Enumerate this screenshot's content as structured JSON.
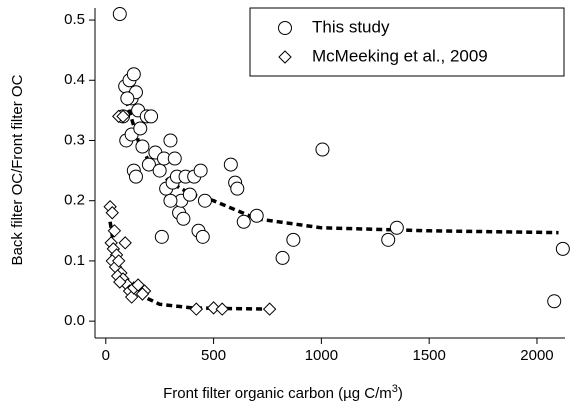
{
  "chart_data": {
    "type": "scatter",
    "x_label": "Front filter organic carbon (µg C/m",
    "x_label_sup": "3",
    "x_label_end": ")",
    "y_label": "Back filter OC/Front filter OC",
    "xlim": [
      -50,
      2130
    ],
    "ylim": [
      -0.028,
      0.52
    ],
    "xticks": [
      0,
      500,
      1000,
      1500,
      2000
    ],
    "yticks": [
      {
        "value": 0,
        "label": "0.0"
      },
      0.1,
      0.2,
      0.3,
      0.4,
      0.5
    ],
    "legend": "top-right",
    "series": [
      {
        "name": "This study",
        "marker": "circle",
        "color": "#000000",
        "x": [
          65,
          90,
          110,
          130,
          120,
          140,
          100,
          80,
          95,
          150,
          120,
          160,
          130,
          140,
          170,
          190,
          210,
          200,
          230,
          250,
          270,
          280,
          300,
          310,
          320,
          330,
          340,
          350,
          360,
          370,
          390,
          410,
          430,
          440,
          460,
          450,
          260,
          300,
          580,
          600,
          610,
          640,
          700,
          820,
          870,
          1005,
          1310,
          1350,
          2080,
          2120
        ],
        "values": [
          0.51,
          0.39,
          0.4,
          0.41,
          0.37,
          0.38,
          0.37,
          0.34,
          0.3,
          0.35,
          0.31,
          0.32,
          0.25,
          0.24,
          0.29,
          0.34,
          0.34,
          0.26,
          0.28,
          0.25,
          0.27,
          0.22,
          0.3,
          0.23,
          0.27,
          0.24,
          0.18,
          0.2,
          0.17,
          0.24,
          0.21,
          0.24,
          0.15,
          0.25,
          0.2,
          0.14,
          0.14,
          0.2,
          0.26,
          0.23,
          0.22,
          0.165,
          0.175,
          0.105,
          0.135,
          0.285,
          0.135,
          0.155,
          0.033,
          0.12
        ]
      },
      {
        "name": "McMeeking et al., 2009",
        "marker": "diamond",
        "color": "#000000",
        "x": [
          20,
          30,
          40,
          25,
          35,
          50,
          30,
          45,
          60,
          70,
          55,
          80,
          90,
          100,
          65,
          110,
          120,
          130,
          150,
          180,
          170,
          60,
          80,
          420,
          500,
          540,
          760
        ],
        "values": [
          0.19,
          0.18,
          0.15,
          0.13,
          0.12,
          0.11,
          0.1,
          0.09,
          0.1,
          0.08,
          0.075,
          0.07,
          0.13,
          0.06,
          0.065,
          0.05,
          0.04,
          0.055,
          0.06,
          0.05,
          0.045,
          0.34,
          0.34,
          0.02,
          0.022,
          0.02,
          0.02
        ]
      }
    ],
    "fits": [
      {
        "x": [
          80,
          100,
          150,
          200,
          300,
          400,
          500,
          700,
          1000,
          1500,
          2100
        ],
        "values": [
          0.4,
          0.36,
          0.3,
          0.265,
          0.23,
          0.21,
          0.2,
          0.17,
          0.155,
          0.15,
          0.147
        ]
      },
      {
        "x": [
          20,
          40,
          60,
          100,
          150,
          250,
          400,
          550,
          750
        ],
        "values": [
          0.165,
          0.12,
          0.09,
          0.065,
          0.045,
          0.028,
          0.022,
          0.021,
          0.02
        ]
      }
    ]
  }
}
